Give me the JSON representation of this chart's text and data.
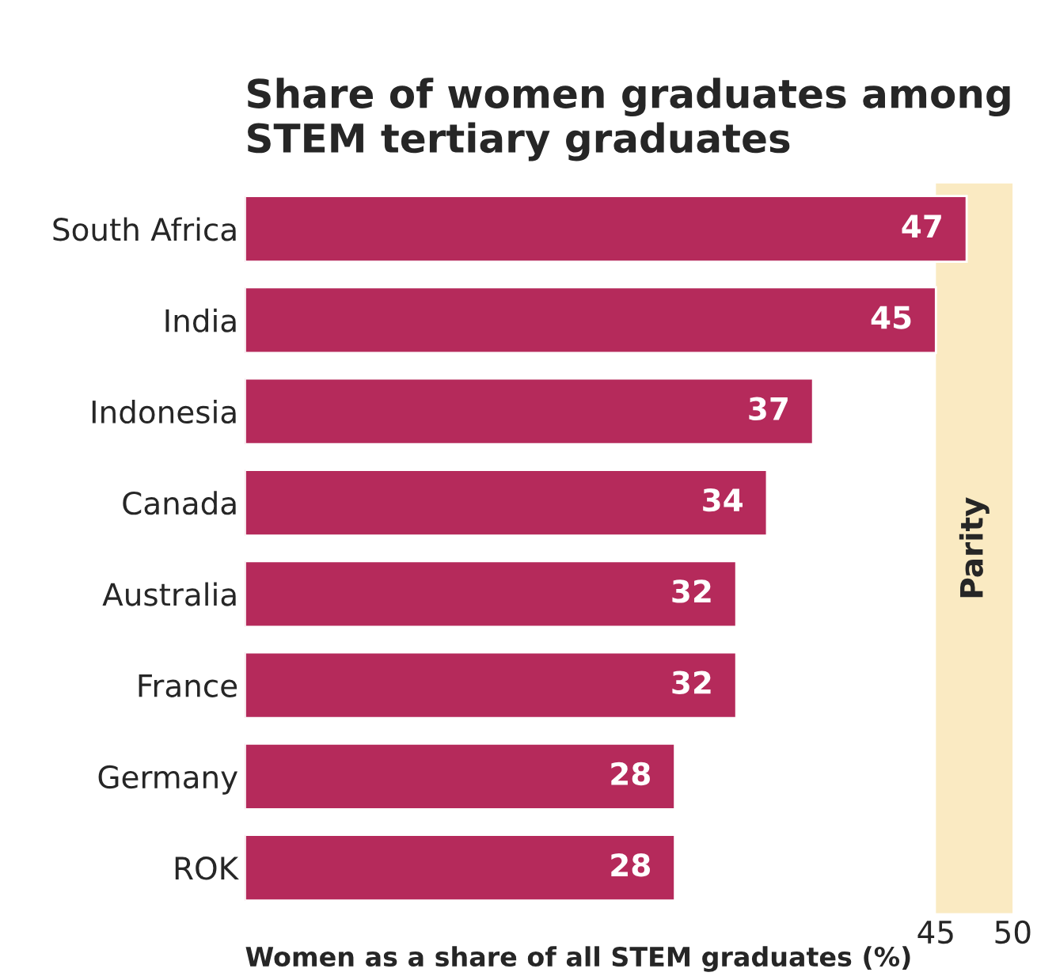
{
  "chart_data": {
    "type": "bar",
    "orientation": "horizontal",
    "title": "Share of women graduates among\nSTEM tertiary graduates",
    "xlabel": "Women as a share of all STEM graduates (%)",
    "categories": [
      "South Africa",
      "India",
      "Indonesia",
      "Canada",
      "Australia",
      "France",
      "Germany",
      "ROK"
    ],
    "values": [
      47,
      45,
      37,
      34,
      32,
      32,
      28,
      28
    ],
    "color": "#b52a5b",
    "data_labels": true,
    "xlim": [
      0,
      50
    ],
    "xticks": [
      45,
      50
    ],
    "grid": false,
    "legend": false,
    "bands": [
      {
        "axis": "x",
        "from": 45,
        "to": 50,
        "label": "Parity",
        "color": "#faeac2"
      }
    ]
  }
}
